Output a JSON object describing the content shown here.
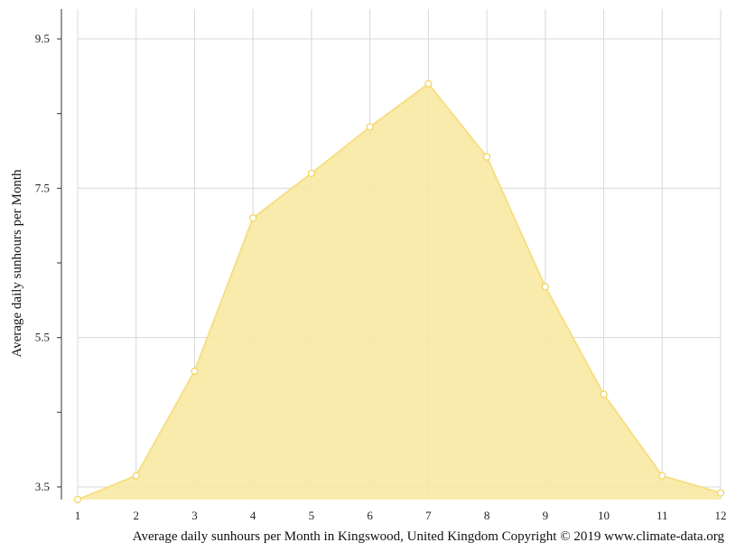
{
  "chart_data": {
    "type": "area",
    "title": "",
    "xlabel": "Average daily sunhours per Month in Kingswood, United Kingdom Copyright © 2019 www.climate-data.org",
    "ylabel": "Average daily sunhours per Month",
    "x": [
      1,
      2,
      3,
      4,
      5,
      6,
      7,
      8,
      9,
      10,
      11,
      12
    ],
    "x_tick_labels": [
      "1",
      "2",
      "3",
      "4",
      "5",
      "6",
      "7",
      "8",
      "9",
      "10",
      "11",
      "12"
    ],
    "y_tick_labels": [
      "9.5",
      "7.5",
      "5.5",
      "3.5"
    ],
    "y_ticks": [
      9.5,
      7.5,
      5.5,
      3.5
    ],
    "y_minor_ticks": [
      8.5,
      6.5,
      4.5
    ],
    "ylim": [
      3.33,
      9.9
    ],
    "xlim": [
      1,
      12
    ],
    "grid": true,
    "series": [
      {
        "values": [
          3.33,
          3.65,
          5.05,
          7.1,
          7.7,
          8.32,
          8.9,
          7.92,
          6.18,
          4.74,
          3.65,
          3.42
        ],
        "fill_color": "#f8e9a2",
        "line_color": "#f7df86",
        "marker_color": "#f3d35f"
      }
    ]
  }
}
